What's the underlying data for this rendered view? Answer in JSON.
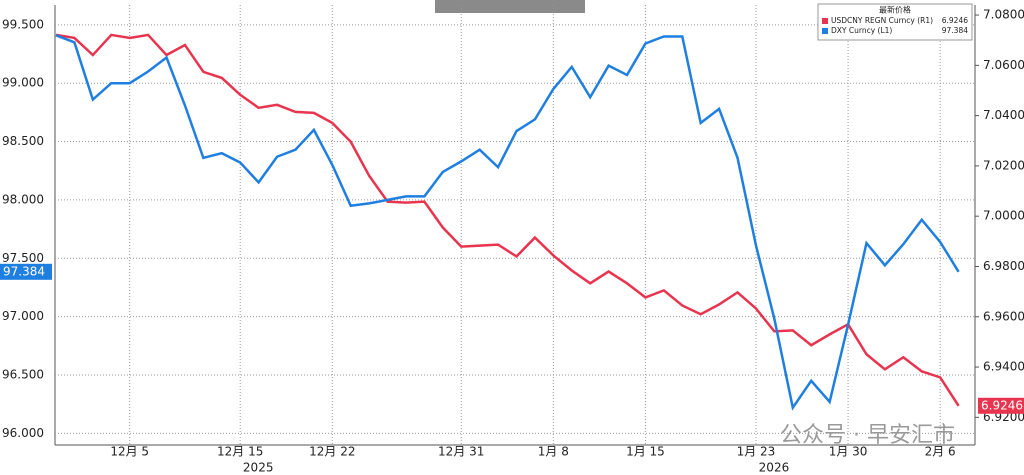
{
  "chart_data": {
    "type": "line",
    "legend_title": "最新价格",
    "categories": [
      null,
      null,
      null,
      null,
      "12月 5",
      null,
      null,
      null,
      null,
      null,
      "12月 15",
      null,
      null,
      null,
      null,
      "12月 22",
      null,
      null,
      null,
      null,
      null,
      null,
      "12月 31",
      null,
      null,
      null,
      null,
      "1月 8",
      null,
      null,
      null,
      null,
      "1月 15",
      null,
      null,
      null,
      null,
      null,
      "1月 23",
      null,
      null,
      null,
      null,
      "1月 30",
      null,
      null,
      null,
      null,
      "2月 6",
      null
    ],
    "year_labels": [
      {
        "label": "2025",
        "at": "12月 15"
      },
      {
        "label": "2026",
        "at": "1月 23"
      }
    ],
    "series": [
      {
        "name": "USDCNY REGN Curncy (R1)",
        "color": "#e8344e",
        "axis": "y2",
        "values": [
          7.0721,
          7.0709,
          7.0641,
          7.0721,
          7.0709,
          7.0721,
          7.0641,
          7.0681,
          7.0574,
          7.055,
          7.0483,
          7.0431,
          7.0443,
          7.0415,
          7.0411,
          7.0371,
          7.0296,
          7.0161,
          7.0058,
          7.0054,
          7.0058,
          6.9955,
          6.9879,
          6.9883,
          6.9887,
          6.984,
          6.9915,
          6.9844,
          6.9784,
          6.9733,
          6.978,
          6.9733,
          6.9677,
          6.9705,
          6.9645,
          6.961,
          6.9649,
          6.9697,
          6.9633,
          6.9542,
          6.9546,
          6.9487,
          6.953,
          6.957,
          6.9451,
          6.9391,
          6.9439,
          6.9383,
          6.9359,
          6.9246
        ]
      },
      {
        "name": "DXY Curncy (L1)",
        "color": "#1f7fe0",
        "values": [
          99.41,
          99.35,
          98.86,
          99.0,
          99.0,
          99.1,
          99.22,
          98.81,
          98.36,
          98.4,
          98.32,
          98.15,
          98.37,
          98.43,
          98.6,
          98.3,
          97.95,
          97.97,
          98.0,
          98.03,
          98.03,
          98.24,
          98.33,
          98.43,
          98.28,
          98.59,
          98.69,
          98.95,
          99.14,
          98.88,
          99.15,
          99.07,
          99.34,
          99.4,
          99.4,
          98.66,
          98.78,
          98.36,
          97.61,
          96.98,
          96.22,
          96.45,
          96.27,
          96.93,
          97.63,
          97.44,
          97.62,
          97.83,
          97.64,
          97.384
        ]
      }
    ],
    "ylim": [
      95.9,
      99.67
    ],
    "yticks": [
      {
        "value": 96,
        "label": "96.000"
      },
      {
        "value": 96.5,
        "label": "96.500"
      },
      {
        "value": 97,
        "label": "97.000"
      },
      {
        "value": 97.5,
        "label": "97.500"
      },
      {
        "value": 98,
        "label": "98.000"
      },
      {
        "value": 98.5,
        "label": "98.500"
      },
      {
        "value": 99,
        "label": "99.000"
      },
      {
        "value": 99.5,
        "label": "99.500"
      }
    ],
    "y2lim": [
      6.909,
      7.084
    ],
    "y2ticks": [
      {
        "value": 6.92,
        "label": "6.9200"
      },
      {
        "value": 6.94,
        "label": "6.9400"
      },
      {
        "value": 6.96,
        "label": "6.9600"
      },
      {
        "value": 6.98,
        "label": "6.9800"
      },
      {
        "value": 7.0,
        "label": "7.0000"
      },
      {
        "value": 7.02,
        "label": "7.0200"
      },
      {
        "value": 7.04,
        "label": "7.0400"
      },
      {
        "value": 7.06,
        "label": "7.0600"
      },
      {
        "value": 7.08,
        "label": "7.0800"
      }
    ],
    "grid": true,
    "annotation": "公众号 · 早安汇市"
  }
}
